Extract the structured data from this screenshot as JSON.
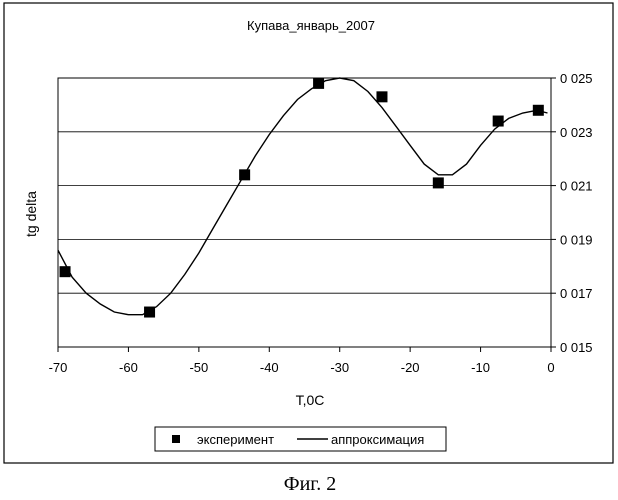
{
  "chart_data": {
    "type": "scatter",
    "title": "Купава_январь_2007",
    "xlabel": "T,0C",
    "ylabel": "tg delta",
    "xlim": [
      -70,
      0
    ],
    "ylim": [
      0.015,
      0.025
    ],
    "x_ticks": [
      "-70",
      "-60",
      "-50",
      "-40",
      "-30",
      "-20",
      "-10",
      "0"
    ],
    "x_tick_values": [
      -70,
      -60,
      -50,
      -40,
      -30,
      -20,
      -10,
      0
    ],
    "y_ticks": [
      "0 015",
      "0 017",
      "0 019",
      "0 021",
      "0 023",
      "0 025"
    ],
    "y_tick_values": [
      0.015,
      0.017,
      0.019,
      0.021,
      0.023,
      0.025
    ],
    "y_axis_side": "right",
    "grid": "horizontal",
    "legend_position": "bottom",
    "series": [
      {
        "name": "эксперимент",
        "kind": "markers",
        "marker": "square",
        "x": [
          -69,
          -57,
          -43.5,
          -33,
          -24,
          -16,
          -7.5,
          -1.8
        ],
        "y": [
          0.0178,
          0.0163,
          0.0214,
          0.0248,
          0.0243,
          0.0211,
          0.0234,
          0.0238
        ]
      },
      {
        "name": "аппроксимация",
        "kind": "line",
        "x": [
          -70,
          -68,
          -66,
          -64,
          -62,
          -60,
          -58,
          -56,
          -54,
          -52,
          -50,
          -48,
          -46,
          -44,
          -42,
          -40,
          -38,
          -36,
          -34,
          -32,
          -30,
          -28,
          -26,
          -24,
          -22,
          -20,
          -18,
          -16,
          -14,
          -12,
          -10,
          -8,
          -6,
          -4,
          -2,
          -0.5
        ],
        "y": [
          0.0186,
          0.0176,
          0.017,
          0.0166,
          0.0163,
          0.0162,
          0.0162,
          0.0165,
          0.017,
          0.0177,
          0.0185,
          0.0194,
          0.0203,
          0.0212,
          0.0221,
          0.0229,
          0.0236,
          0.0242,
          0.0246,
          0.0249,
          0.025,
          0.0249,
          0.0245,
          0.0239,
          0.0232,
          0.0225,
          0.0218,
          0.0214,
          0.0214,
          0.0218,
          0.0225,
          0.0231,
          0.0235,
          0.0237,
          0.0238,
          0.0237
        ]
      }
    ]
  },
  "caption": "Фиг. 2"
}
